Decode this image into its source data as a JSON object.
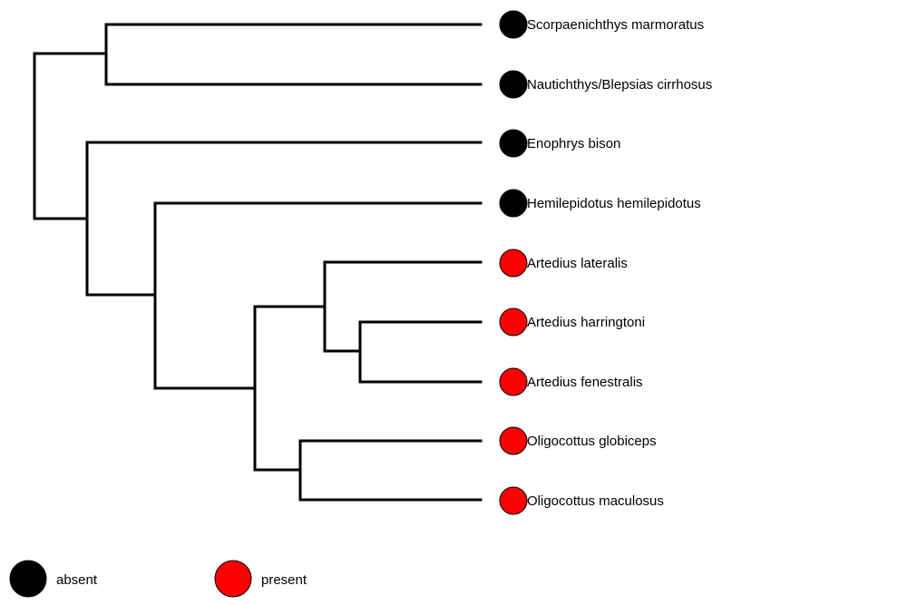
{
  "tree": {
    "tips": [
      {
        "label": "Scorpaenichthys marmoratus",
        "state": "absent"
      },
      {
        "label": "Nautichthys/Blepsias cirrhosus",
        "state": "absent"
      },
      {
        "label": "Enophrys bison",
        "state": "absent"
      },
      {
        "label": "Hemilepidotus hemilepidotus",
        "state": "absent"
      },
      {
        "label": "Artedius lateralis",
        "state": "present"
      },
      {
        "label": "Artedius harringtoni",
        "state": "present"
      },
      {
        "label": "Artedius fenestralis",
        "state": "present"
      },
      {
        "label": "Oligocottus globiceps",
        "state": "present"
      },
      {
        "label": "Oligocottus maculosus",
        "state": "present"
      }
    ]
  },
  "legend": {
    "items": [
      {
        "label": "absent",
        "state": "absent"
      },
      {
        "label": "present",
        "state": "present"
      }
    ]
  },
  "colors": {
    "absent": "#000000",
    "present": "#ff0000",
    "branch": "#000000"
  }
}
